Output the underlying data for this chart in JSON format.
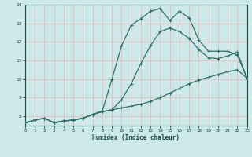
{
  "xlabel": "Humidex (Indice chaleur)",
  "xlim": [
    0,
    23
  ],
  "ylim": [
    7.5,
    14
  ],
  "yticks": [
    8,
    9,
    10,
    11,
    12,
    13,
    14
  ],
  "xticks": [
    0,
    1,
    2,
    3,
    4,
    5,
    6,
    7,
    8,
    9,
    10,
    11,
    12,
    13,
    14,
    15,
    16,
    17,
    18,
    19,
    20,
    21,
    22,
    23
  ],
  "background_color": "#cce8e8",
  "line_color": "#2e6e6a",
  "grid_color_h": "#e8b8b8",
  "grid_color_v": "#e8b8b8",
  "series1_x": [
    0,
    1,
    2,
    3,
    4,
    5,
    6,
    7,
    8,
    9,
    10,
    11,
    12,
    13,
    14,
    15,
    16,
    17,
    18,
    19,
    20,
    21,
    22,
    23
  ],
  "series1_y": [
    7.65,
    7.8,
    7.9,
    7.65,
    7.75,
    7.8,
    7.9,
    8.1,
    8.25,
    8.35,
    8.45,
    8.55,
    8.65,
    8.8,
    9.0,
    9.25,
    9.5,
    9.75,
    9.95,
    10.1,
    10.25,
    10.4,
    10.5,
    10.05
  ],
  "series2_x": [
    0,
    1,
    2,
    3,
    4,
    5,
    6,
    7,
    8,
    9,
    10,
    11,
    12,
    13,
    14,
    15,
    16,
    17,
    18,
    19,
    20,
    21,
    22,
    23
  ],
  "series2_y": [
    7.65,
    7.8,
    7.9,
    7.65,
    7.75,
    7.8,
    7.9,
    8.1,
    8.25,
    8.35,
    8.9,
    9.75,
    10.85,
    11.8,
    12.55,
    12.75,
    12.55,
    12.2,
    11.6,
    11.15,
    11.1,
    11.25,
    11.45,
    10.05
  ],
  "series3_x": [
    0,
    1,
    2,
    3,
    4,
    5,
    6,
    7,
    8,
    9,
    10,
    11,
    12,
    13,
    14,
    15,
    16,
    17,
    18,
    19,
    20,
    21,
    22,
    23
  ],
  "series3_y": [
    7.65,
    7.8,
    7.9,
    7.65,
    7.75,
    7.8,
    7.9,
    8.1,
    8.3,
    10.0,
    11.8,
    12.9,
    13.25,
    13.65,
    13.8,
    13.15,
    13.65,
    13.3,
    12.1,
    11.5,
    11.5,
    11.5,
    11.3,
    10.05
  ]
}
